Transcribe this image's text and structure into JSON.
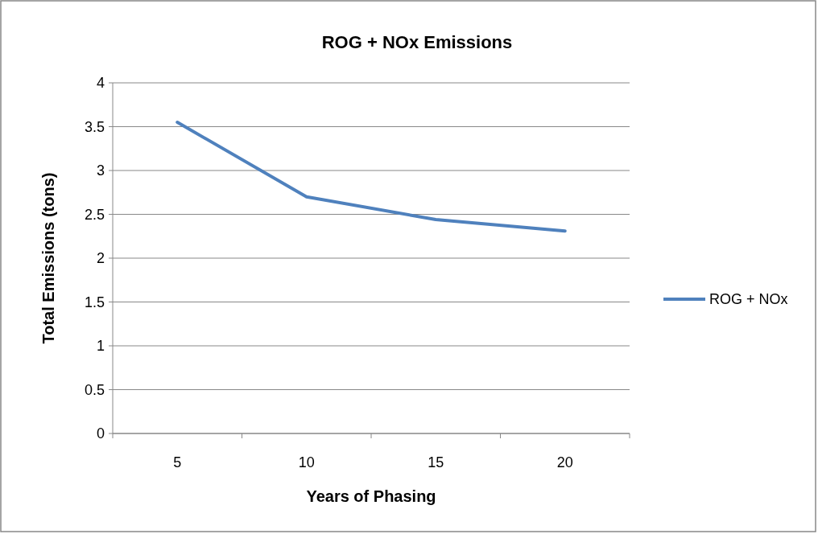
{
  "chart_data": {
    "type": "line",
    "title": "ROG + NOx Emissions",
    "xlabel": "Years of Phasing",
    "ylabel": "Total Emissions (tons)",
    "categories": [
      "5",
      "10",
      "15",
      "20"
    ],
    "series": [
      {
        "name": "ROG + NOx",
        "color": "#4f81bd",
        "values": [
          3.55,
          2.7,
          2.44,
          2.31
        ]
      }
    ],
    "ylim": [
      0,
      4
    ],
    "yticks": [
      0,
      0.5,
      1,
      1.5,
      2,
      2.5,
      3,
      3.5,
      4
    ],
    "grid": "y",
    "legend": "right",
    "marker": "none",
    "line_style": "solid"
  }
}
